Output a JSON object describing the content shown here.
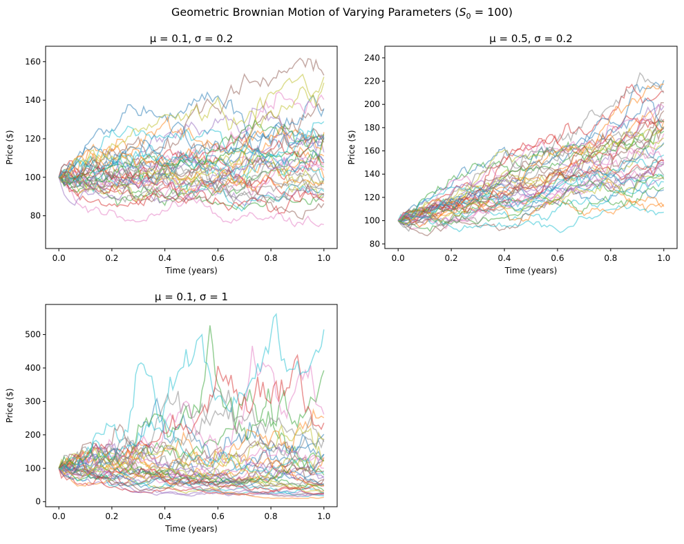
{
  "figure": {
    "title_main": "Geometric Brownian Motion of Varying Parameters (",
    "title_sym": "S",
    "title_sub": "0",
    "title_tail": " = 100)"
  },
  "chart_data": [
    {
      "type": "line",
      "title": "μ = 0.1, σ = 0.2",
      "xlabel": "Time (years)",
      "ylabel": "Price ($)",
      "xlim": [
        -0.05,
        1.05
      ],
      "ylim": [
        63,
        168
      ],
      "xticks": [
        0.0,
        0.2,
        0.4,
        0.6,
        0.8,
        1.0
      ],
      "yticks": [
        80,
        100,
        120,
        140,
        160
      ],
      "x_range": [
        0,
        1
      ],
      "steps": 100,
      "num_paths": 40,
      "start_value": 100,
      "mu": 0.1,
      "sigma": 0.2,
      "value_range": [
        68,
        162
      ],
      "grid": false
    },
    {
      "type": "line",
      "title": "μ = 0.5, σ = 0.2",
      "xlabel": "Time (years)",
      "ylabel": "Price ($)",
      "xlim": [
        -0.05,
        1.05
      ],
      "ylim": [
        76,
        250
      ],
      "xticks": [
        0.0,
        0.2,
        0.4,
        0.6,
        0.8,
        1.0
      ],
      "yticks": [
        80,
        100,
        120,
        140,
        160,
        180,
        200,
        220,
        240
      ],
      "x_range": [
        0,
        1
      ],
      "steps": 100,
      "num_paths": 40,
      "start_value": 100,
      "mu": 0.5,
      "sigma": 0.2,
      "value_range": [
        85,
        243
      ],
      "grid": false
    },
    {
      "type": "line",
      "title": "μ = 0.1, σ = 1",
      "xlabel": "Time (years)",
      "ylabel": "Price ($)",
      "xlim": [
        -0.05,
        1.05
      ],
      "ylim": [
        -15,
        590
      ],
      "xticks": [
        0.0,
        0.2,
        0.4,
        0.6,
        0.8,
        1.0
      ],
      "yticks": [
        0,
        100,
        200,
        300,
        400,
        500
      ],
      "x_range": [
        0,
        1
      ],
      "steps": 100,
      "num_paths": 40,
      "start_value": 100,
      "mu": 0.1,
      "sigma": 1,
      "value_range": [
        10,
        565
      ],
      "grid": false
    }
  ],
  "colors": [
    "#1f77b4",
    "#ff7f0e",
    "#2ca02c",
    "#d62728",
    "#9467bd",
    "#8c564b",
    "#e377c2",
    "#7f7f7f",
    "#bcbd22",
    "#17becf"
  ]
}
